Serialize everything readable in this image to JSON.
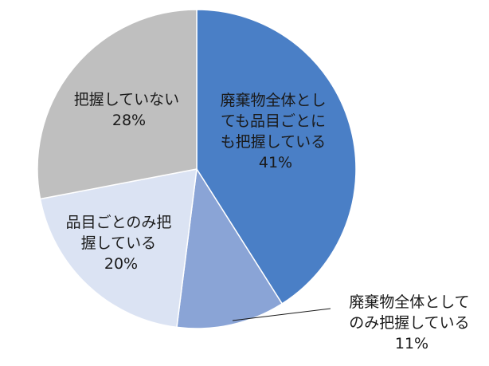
{
  "chart_data": {
    "type": "pie",
    "title": "",
    "slices": [
      {
        "label": [
          "廃棄物全体とし",
          "ても品目ごとに",
          "も把握している"
        ],
        "value": 41,
        "pct": "41%",
        "color": "#4a7fc6"
      },
      {
        "label": [
          "廃棄物全体として",
          "のみ把握している"
        ],
        "value": 11,
        "pct": "11%",
        "color": "#8aa4d6"
      },
      {
        "label": [
          "品目ごとのみ把",
          "握している"
        ],
        "value": 20,
        "pct": "20%",
        "color": "#dbe3f3"
      },
      {
        "label": [
          "把握していない"
        ],
        "value": 28,
        "pct": "28%",
        "color": "#bfbfbf"
      }
    ]
  }
}
